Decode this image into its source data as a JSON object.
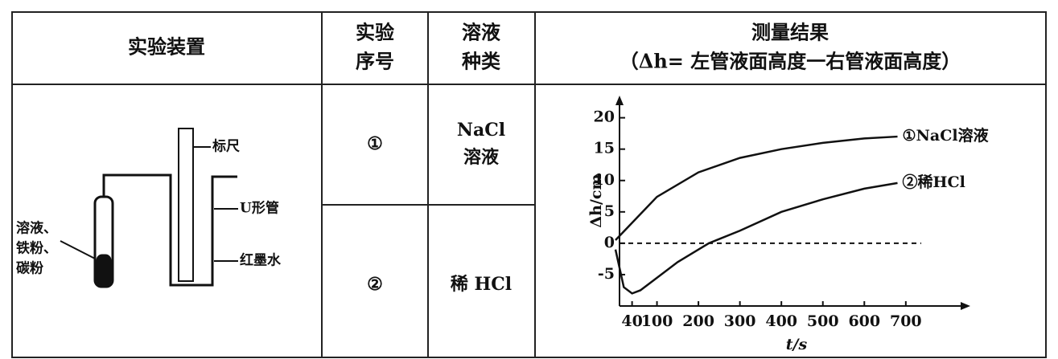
{
  "table": {
    "headers": [
      [
        "实验装置"
      ],
      [
        "实验",
        "序号"
      ],
      [
        "溶液",
        "种类"
      ],
      [
        "测量结果",
        "（Δh= 左管液面高度一右管液面高度）"
      ]
    ],
    "rows": [
      {
        "id": "①",
        "solution": [
          "NaCl",
          "溶液"
        ]
      },
      {
        "id": "②",
        "solution": [
          "稀 HCl"
        ]
      }
    ]
  },
  "apparatus": {
    "ruler": "标尺",
    "u_tube": "U形管",
    "ink": "红墨水",
    "contents": [
      "溶液、",
      "铁粉、",
      "碳粉"
    ]
  },
  "chart_data": {
    "type": "line",
    "xlabel": "t/s",
    "ylabel": "Δh/cm",
    "xlim": [
      0,
      840
    ],
    "ylim": [
      -10,
      22
    ],
    "xticks": [
      40,
      100,
      200,
      300,
      400,
      500,
      600,
      700
    ],
    "yticks": [
      -5,
      0,
      5,
      10,
      15,
      20
    ],
    "zero_line": true,
    "series": [
      {
        "name": "①NaCl溶液",
        "color": "#111111",
        "x": [
          0,
          100,
          200,
          300,
          400,
          500,
          600,
          680
        ],
        "values": [
          0.5,
          7.4,
          11.3,
          13.6,
          15,
          16,
          16.7,
          17
        ]
      },
      {
        "name": "②稀HCl",
        "color": "#111111",
        "x": [
          0,
          20,
          40,
          60,
          100,
          150,
          200,
          225,
          300,
          400,
          500,
          600,
          680
        ],
        "values": [
          -1,
          -7,
          -8,
          -7.5,
          -5.5,
          -3,
          -1,
          0,
          2,
          5,
          7,
          8.7,
          9.6
        ]
      }
    ]
  }
}
